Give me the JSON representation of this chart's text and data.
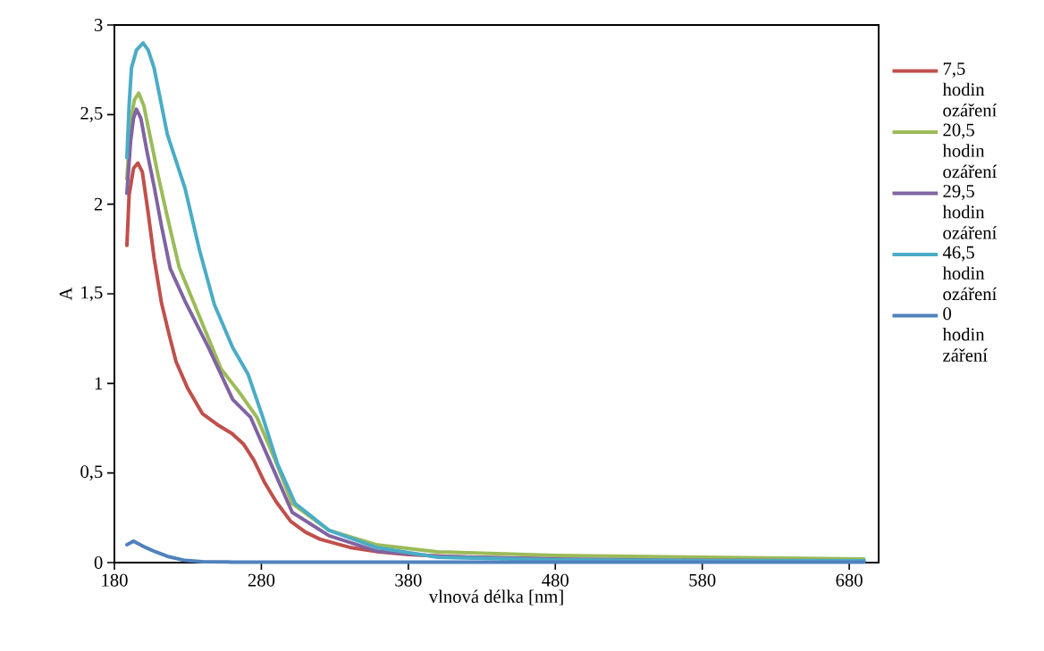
{
  "chart_data": {
    "type": "line",
    "xlabel": "vlnová délka [nm]",
    "ylabel": "A",
    "xlim": [
      180,
      700
    ],
    "ylim": [
      0,
      3
    ],
    "xticks": [
      180,
      280,
      380,
      480,
      580,
      680
    ],
    "yticks": [
      0,
      {
        "value": 0.5,
        "label": "0,5"
      },
      1,
      {
        "value": 1.5,
        "label": "1,5"
      },
      2,
      {
        "value": 2.5,
        "label": "2,5"
      },
      3
    ],
    "grid": false,
    "legend": "right",
    "marker": "none",
    "line_style": "solid",
    "series": [
      {
        "name": "7,5 hodin ozáření",
        "color": "#c0504d",
        "x": [
          188.5,
          190,
          193,
          196,
          199,
          203,
          207,
          212,
          217,
          222,
          230,
          240,
          250,
          260,
          268,
          275,
          282,
          290,
          300,
          310,
          320,
          340,
          360,
          380,
          420,
          480
        ],
        "values": [
          1.77,
          2.05,
          2.2,
          2.23,
          2.18,
          1.95,
          1.7,
          1.45,
          1.28,
          1.12,
          0.97,
          0.83,
          0.77,
          0.72,
          0.66,
          0.57,
          0.45,
          0.34,
          0.23,
          0.17,
          0.13,
          0.085,
          0.06,
          0.045,
          0.03,
          0.02
        ]
      },
      {
        "name": "20,5 hodin ozáření",
        "color": "#9bbb59",
        "x": [
          188.5,
          191,
          193.5,
          196.5,
          200,
          205,
          210,
          216,
          224,
          236,
          252.6,
          265,
          277,
          289,
          301,
          326,
          358,
          400,
          480,
          580,
          690
        ],
        "values": [
          2.14,
          2.45,
          2.58,
          2.62,
          2.55,
          2.35,
          2.15,
          1.93,
          1.65,
          1.41,
          1.08,
          0.95,
          0.81,
          0.58,
          0.33,
          0.18,
          0.1,
          0.06,
          0.04,
          0.03,
          0.02
        ]
      },
      {
        "name": "29,5 hodin ozáření",
        "color": "#8064a2",
        "x": [
          188.5,
          191,
          193,
          195,
          198,
          202,
          207,
          212,
          218,
          228,
          244,
          260.5,
          272.7,
          285,
          301,
          326,
          358,
          400,
          480,
          580,
          690
        ],
        "values": [
          2.06,
          2.35,
          2.48,
          2.53,
          2.48,
          2.3,
          2.1,
          1.88,
          1.64,
          1.46,
          1.2,
          0.91,
          0.81,
          0.58,
          0.28,
          0.15,
          0.065,
          0.035,
          0.02,
          0.012,
          0.01
        ]
      },
      {
        "name": "46,5 hodin ozáření",
        "color": "#4bacc6",
        "x": [
          188.5,
          190,
          191.6,
          195,
          199.5,
          203,
          207,
          216,
          228,
          238,
          248,
          260.5,
          271,
          281,
          291,
          303,
          326,
          358,
          400,
          480,
          580,
          690
        ],
        "values": [
          2.26,
          2.55,
          2.76,
          2.86,
          2.9,
          2.86,
          2.76,
          2.39,
          2.09,
          1.74,
          1.44,
          1.2,
          1.05,
          0.81,
          0.55,
          0.33,
          0.18,
          0.085,
          0.03,
          0.015,
          0.01,
          0.01
        ]
      },
      {
        "name": "0 hodin záření",
        "color": "#4f81bd",
        "x": [
          188.5,
          193,
          201,
          208,
          216,
          228,
          240,
          260,
          300,
          400,
          500,
          600,
          690
        ],
        "values": [
          0.1,
          0.12,
          0.085,
          0.06,
          0.035,
          0.012,
          0.005,
          0.003,
          0.003,
          0.003,
          0.003,
          0.003,
          0.003
        ]
      }
    ]
  }
}
